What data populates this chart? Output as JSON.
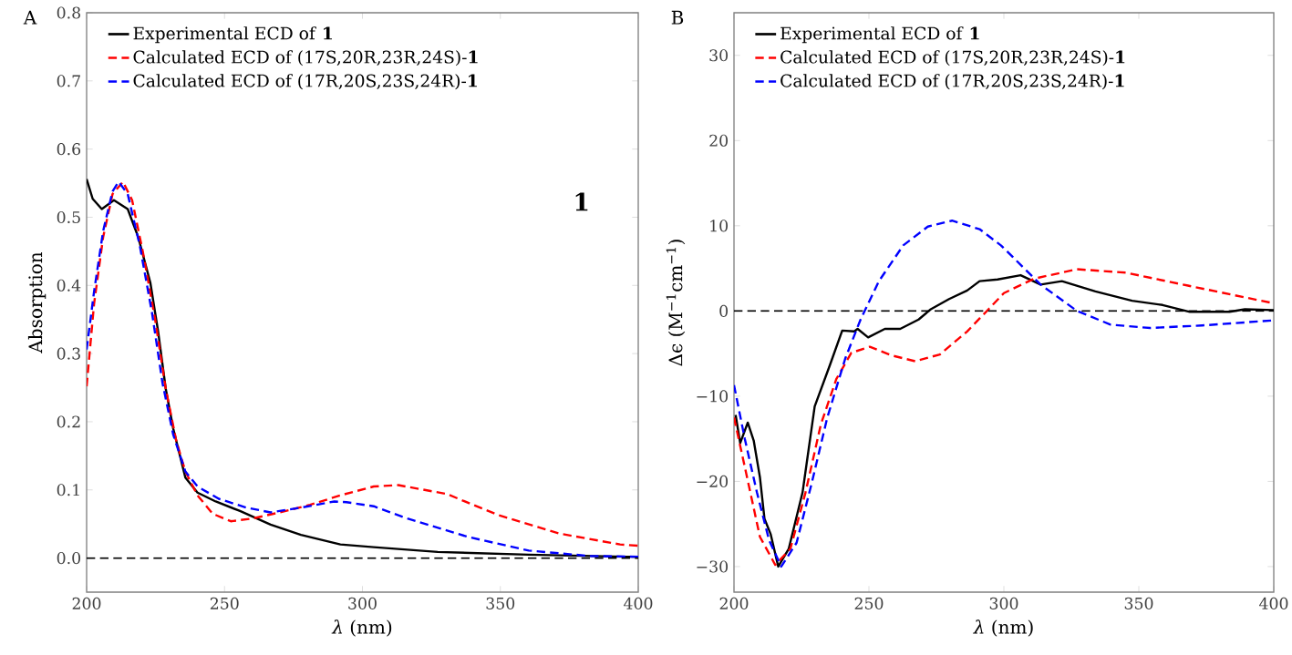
{
  "chart_data": [
    {
      "type": "line",
      "title": "A",
      "xlabel": "*λ* (nm)",
      "ylabel": "Absorption",
      "xlim": [
        200,
        400
      ],
      "ylim": [
        -0.05,
        0.8
      ],
      "xticks": [
        200,
        250,
        300,
        350,
        400
      ],
      "yticks": [
        {
          "value": 0,
          "label": "0.0"
        },
        {
          "value": 0.1,
          "label": "0.1"
        },
        {
          "value": 0.2,
          "label": "0.2"
        },
        {
          "value": 0.3,
          "label": "0.3"
        },
        {
          "value": 0.4,
          "label": "0.4"
        },
        {
          "value": 0.5,
          "label": "0.5"
        },
        {
          "value": 0.6,
          "label": "0.6"
        },
        {
          "value": 0.7,
          "label": "0.7"
        },
        {
          "value": 0.8,
          "label": "0.8"
        }
      ],
      "legend": "top left",
      "marker": "none",
      "annotations": [
        "1"
      ],
      "ref_lines": [
        {
          "axis": "y",
          "value": 0,
          "color": "#000000",
          "line_style": "dashed"
        }
      ],
      "series": [
        {
          "name": "Experimental ECD of **1**",
          "color": "#000000",
          "line_style": "solid",
          "x": [
            200,
            202.2,
            205.5,
            209.9,
            214.9,
            218.7,
            223.1,
            225.9,
            228.7,
            231.4,
            235.8,
            240.2,
            246.8,
            255.6,
            266.7,
            277.7,
            292,
            304.1,
            327.3,
            360.3,
            395.6,
            400
          ],
          "values": [
            0.556,
            0.527,
            0.512,
            0.525,
            0.512,
            0.471,
            0.404,
            0.333,
            0.248,
            0.19,
            0.118,
            0.096,
            0.083,
            0.069,
            0.049,
            0.034,
            0.02,
            0.016,
            0.009,
            0.005,
            0.002,
            0.002
          ]
        },
        {
          "name": "Calculated ECD of (17S,20R,23R,24S)-**1**",
          "color": "#ff0000",
          "line_style": "dashed",
          "x": [
            200,
            202.7,
            206,
            209.4,
            213.2,
            216.5,
            220.4,
            224.8,
            228.7,
            232.5,
            235.8,
            240.2,
            245.7,
            252.3,
            260.1,
            270,
            281,
            292,
            304.1,
            313,
            330.6,
            349.3,
            371.3,
            393.4,
            400
          ],
          "values": [
            0.252,
            0.373,
            0.471,
            0.534,
            0.552,
            0.525,
            0.449,
            0.351,
            0.248,
            0.172,
            0.127,
            0.092,
            0.065,
            0.054,
            0.058,
            0.067,
            0.078,
            0.092,
            0.105,
            0.107,
            0.094,
            0.063,
            0.036,
            0.02,
            0.018
          ]
        },
        {
          "name": "Calculated ECD of (17R,20S,23S,24R)-**1**",
          "color": "#0000ff",
          "line_style": "dashed",
          "x": [
            200,
            202.7,
            206,
            209.4,
            211.6,
            214.9,
            219.3,
            223.7,
            227.5,
            231.4,
            235.8,
            240.2,
            247.9,
            257.9,
            266.7,
            277.7,
            289.8,
            294.2,
            304.1,
            316.3,
            338.3,
            360.3,
            382.4,
            400
          ],
          "values": [
            0.306,
            0.391,
            0.48,
            0.538,
            0.552,
            0.534,
            0.458,
            0.36,
            0.257,
            0.181,
            0.127,
            0.105,
            0.087,
            0.074,
            0.067,
            0.074,
            0.083,
            0.082,
            0.076,
            0.058,
            0.031,
            0.011,
            0.003,
            0.002
          ]
        }
      ]
    },
    {
      "type": "line",
      "title": "B",
      "xlabel": "*λ* (nm)",
      "ylabel": "Δϵ (M$^{−1}$cm$^{−1}$)",
      "xlim": [
        200,
        400
      ],
      "ylim": [
        -33,
        35
      ],
      "xticks": [
        200,
        250,
        300,
        350,
        400
      ],
      "yticks": [
        {
          "value": -30,
          "label": "−30"
        },
        {
          "value": -20,
          "label": "−20"
        },
        {
          "value": -10,
          "label": "−10"
        },
        0,
        10,
        20,
        30
      ],
      "legend": "top left",
      "marker": "none",
      "ref_lines": [
        {
          "axis": "y",
          "value": 0,
          "color": "#000000",
          "line_style": "dashed"
        }
      ],
      "series": [
        {
          "name": "Experimental ECD of **1**",
          "color": "#000000",
          "line_style": "solid",
          "x": [
            200.6,
            202.3,
            205.1,
            207.3,
            209.6,
            211.3,
            213.6,
            216.4,
            220.3,
            225.4,
            229.9,
            235.6,
            240.1,
            244.6,
            245.8,
            249.7,
            255.9,
            261.6,
            268.4,
            272.9,
            279.7,
            286.4,
            291,
            297.7,
            306.2,
            313.6,
            321.5,
            333.9,
            347.5,
            358.8,
            368.9,
            383.6,
            389.3,
            400
          ],
          "values": [
            -12.2,
            -15.5,
            -13.1,
            -15.2,
            -19.5,
            -24.4,
            -26.2,
            -30,
            -27.9,
            -21.3,
            -11.2,
            -6.3,
            -2.3,
            -2.4,
            -2.1,
            -3.1,
            -2.1,
            -2.1,
            -1,
            0.2,
            1.4,
            2.4,
            3.5,
            3.7,
            4.2,
            3.1,
            3.5,
            2.3,
            1.2,
            0.7,
            -0.1,
            -0.1,
            0.2,
            0.1
          ]
        },
        {
          "name": "Calculated ECD of (17S,20R,23R,24S)-**1**",
          "color": "#ff0000",
          "line_style": "dashed",
          "x": [
            200,
            205.1,
            209.6,
            215.3,
            220.9,
            226.5,
            232.2,
            237.9,
            243.5,
            250.3,
            258.2,
            267.2,
            276.3,
            286.4,
            294.3,
            300,
            311.3,
            327.1,
            345.2,
            367.8,
            400
          ],
          "values": [
            -12.5,
            -19.9,
            -26.5,
            -29.8,
            -27.9,
            -21.3,
            -13.3,
            -8,
            -4.9,
            -4.2,
            -5.2,
            -5.9,
            -5.1,
            -2.4,
            0.2,
            2.1,
            3.8,
            4.9,
            4.5,
            3,
            0.9
          ]
        },
        {
          "name": "Calculated ECD of (17R,20S,23S,24R)-**1**",
          "color": "#0000ff",
          "line_style": "dashed",
          "x": [
            200,
            204,
            208.5,
            213,
            217.5,
            223.2,
            228.8,
            234.5,
            241.2,
            246.9,
            253.7,
            262.7,
            271.8,
            280.8,
            291,
            298.9,
            303.4,
            313.6,
            327.1,
            339.5,
            354.2,
            373.4,
            400
          ],
          "values": [
            -8.7,
            -15,
            -21.3,
            -26.9,
            -30,
            -27.2,
            -20.2,
            -12.6,
            -5.6,
            -1,
            3.5,
            7.7,
            9.9,
            10.6,
            9.6,
            7.7,
            6.3,
            3.1,
            0,
            -1.6,
            -2,
            -1.7,
            -1.1
          ]
        }
      ]
    }
  ]
}
